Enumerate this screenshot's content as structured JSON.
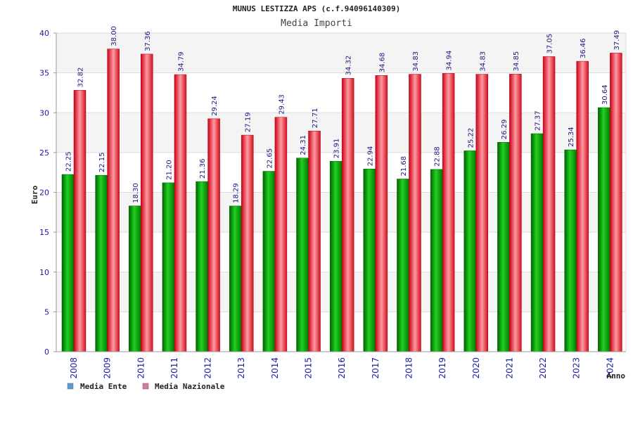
{
  "chart_data": {
    "type": "bar",
    "title": "MUNUS LESTIZZA APS (c.f.94096140309)",
    "subtitle": "Media Importi",
    "xlabel": "Anno",
    "ylabel": "Euro",
    "ylim": [
      0,
      40
    ],
    "yticks": [
      0,
      5,
      10,
      15,
      20,
      25,
      30,
      35,
      40
    ],
    "categories": [
      "2008",
      "2009",
      "2010",
      "2011",
      "2012",
      "2013",
      "2014",
      "2015",
      "2016",
      "2017",
      "2018",
      "2019",
      "2020",
      "2021",
      "2022",
      "2023",
      "2024"
    ],
    "series": [
      {
        "name": "Media Ente",
        "color": "#00b000",
        "values": [
          22.25,
          22.15,
          18.3,
          21.2,
          21.36,
          18.29,
          22.65,
          24.31,
          23.91,
          22.94,
          21.68,
          22.88,
          25.22,
          26.29,
          27.37,
          25.34,
          30.64
        ],
        "labels": [
          "22.25",
          "22.15",
          "18.30",
          "21.20",
          "21.36",
          "18.29",
          "22.65",
          "24.31",
          "23.91",
          "22.94",
          "21.68",
          "22.88",
          "25.22",
          "26.29",
          "27.37",
          "25.34",
          "30.64"
        ]
      },
      {
        "name": "Media Nazionale",
        "color": "#e82030",
        "values": [
          32.82,
          38.0,
          37.36,
          34.79,
          29.24,
          27.19,
          29.43,
          27.71,
          34.32,
          34.68,
          34.83,
          34.94,
          34.83,
          34.85,
          37.05,
          36.46,
          37.49
        ],
        "labels": [
          "32.82",
          "38.00",
          "37.36",
          "34.79",
          "29.24",
          "27.19",
          "29.43",
          "27.71",
          "34.32",
          "34.68",
          "34.83",
          "34.94",
          "34.83",
          "34.85",
          "37.05",
          "36.46",
          "37.49"
        ]
      }
    ],
    "legend": {
      "placement": "bottom-left",
      "swatch_colors": [
        "#5b9bd5",
        "#d77aa8"
      ]
    },
    "grid": true,
    "band_colors": [
      "#f4f4f4",
      "#ffffff"
    ]
  }
}
